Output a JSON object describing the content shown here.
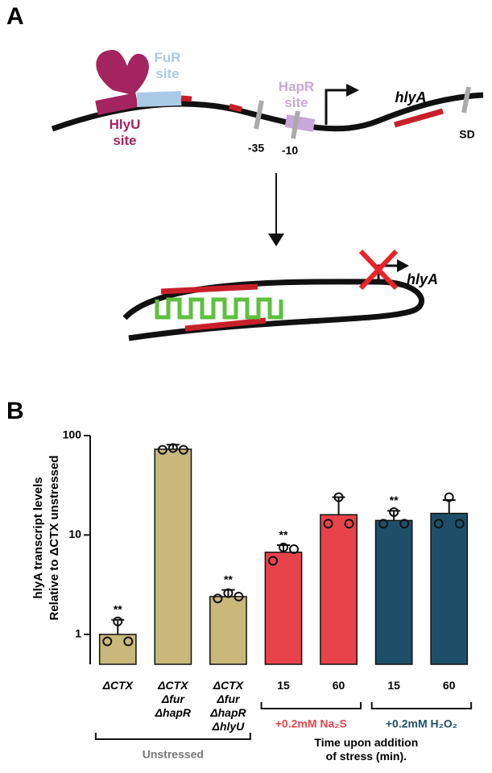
{
  "diagram": {
    "panel": "A",
    "fur_site": "FuR\nsite",
    "hlyu_site": "HlyU\nsite",
    "hapr_site": "HapR\nsite",
    "minus35": "-35",
    "minus10": "-10",
    "gene": "hlyA",
    "sd": "SD",
    "gene_blocked": "hlyA"
  },
  "chart_data": {
    "type": "bar",
    "panel": "B",
    "log_scale": true,
    "ylabel": [
      "hlyA transcript levels",
      "Relative to ΔCTX unstressed"
    ],
    "categories": [
      "ΔCTX",
      "ΔCTX\nΔfur\nΔhapR",
      "ΔCTX\nΔfur\nΔhapR\nΔhlyU",
      "15",
      "60",
      "15",
      "60"
    ],
    "values": [
      1.0,
      73,
      2.4,
      6.7,
      16,
      14,
      16.5
    ],
    "errors": [
      0.4,
      8,
      0.4,
      1.2,
      8,
      3.5,
      6
    ],
    "points": [
      [
        0.85,
        1.35,
        0.85
      ],
      [
        72,
        75,
        72
      ],
      [
        2.3,
        2.6,
        2.4
      ],
      [
        5.5,
        7.5,
        7.2
      ],
      [
        13,
        24,
        13
      ],
      [
        13,
        17,
        13
      ],
      [
        13,
        24,
        13
      ]
    ],
    "significance": [
      "**",
      null,
      "**",
      "**",
      null,
      "**",
      null
    ],
    "colors": [
      "#c8b87c",
      "#c8b87c",
      "#c8b87c",
      "#e8434a",
      "#e8434a",
      "#1d5068",
      "#1d5068"
    ],
    "ylim": [
      0.5,
      100
    ],
    "yticks": [
      1,
      10,
      100
    ],
    "groups": [
      {
        "label": "Unstressed",
        "color": "#777777"
      },
      {
        "label": "+0.2mM Na₂S",
        "color": "#e8434a"
      },
      {
        "label": "+0.2mM H₂O₂",
        "color": "#1d5068"
      }
    ],
    "xlabel": "Time upon addition\nof stress (min)."
  }
}
